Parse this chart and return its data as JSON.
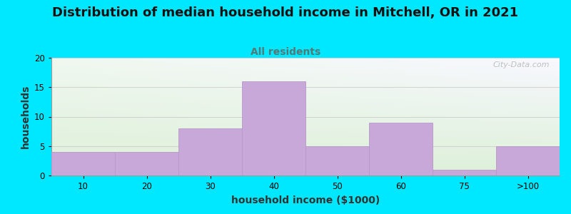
{
  "title": "Distribution of median household income in Mitchell, OR in 2021",
  "subtitle": "All residents",
  "xlabel": "household income ($1000)",
  "ylabel": "households",
  "bar_labels": [
    "10",
    "20",
    "30",
    "40",
    "50",
    "60",
    "75",
    ">100"
  ],
  "bar_values": [
    4,
    4,
    8,
    16,
    5,
    9,
    1,
    5
  ],
  "bar_color": "#c8a8d8",
  "bar_edgecolor": "#b898c8",
  "ylim": [
    0,
    20
  ],
  "yticks": [
    0,
    5,
    10,
    15,
    20
  ],
  "background_outer": "#00e8ff",
  "background_grad_colors": [
    "#ddf0d8",
    "#f0f8f0",
    "#f8f8ff"
  ],
  "title_fontsize": 13,
  "subtitle_fontsize": 10,
  "subtitle_color": "#557777",
  "axis_label_fontsize": 10,
  "watermark": "City-Data.com",
  "watermark_color": "#b0b8b8"
}
